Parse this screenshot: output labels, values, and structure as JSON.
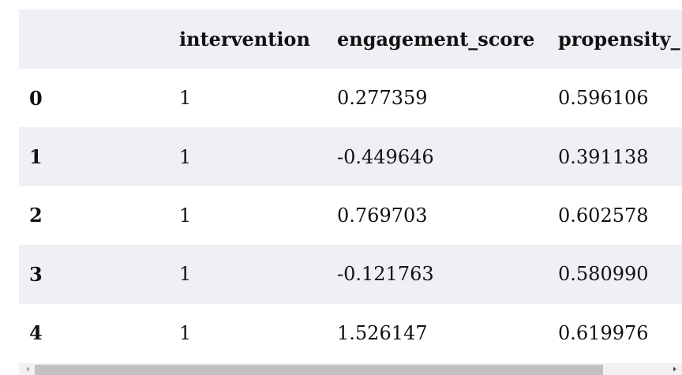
{
  "table": {
    "columns": [
      "intervention",
      "engagement_score",
      "propensity_"
    ],
    "rows": [
      [
        "0",
        "1",
        "0.277359",
        "0.596106"
      ],
      [
        "1",
        "1",
        "-0.449646",
        "0.391138"
      ],
      [
        "2",
        "1",
        "0.769703",
        "0.602578"
      ],
      [
        "3",
        "1",
        "-0.121763",
        "0.580990"
      ],
      [
        "4",
        "1",
        "1.526147",
        "0.619976"
      ]
    ]
  }
}
